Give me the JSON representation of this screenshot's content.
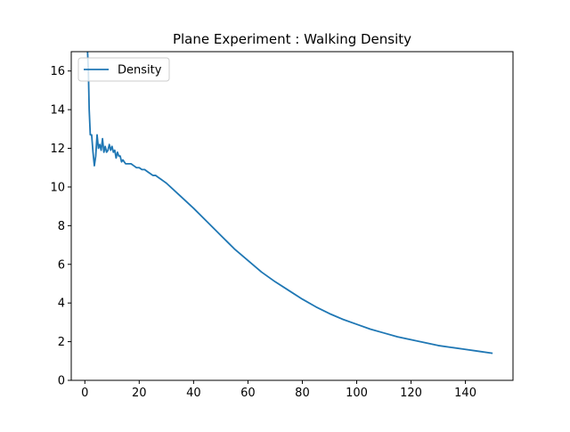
{
  "chart_data": {
    "type": "line",
    "title": "Plane Experiment : Walking Density",
    "xlabel": "",
    "ylabel": "",
    "xlim": [
      -5,
      157.5
    ],
    "ylim": [
      0,
      17
    ],
    "xticks": [
      0,
      20,
      40,
      60,
      80,
      100,
      120,
      140
    ],
    "yticks": [
      0,
      2,
      4,
      6,
      8,
      10,
      12,
      14,
      16
    ],
    "grid": false,
    "legend": "upper-left",
    "series": [
      {
        "name": "Density",
        "color": "#1f77b4",
        "x": [
          1.0,
          1.3,
          1.6,
          2.0,
          2.5,
          3.0,
          3.5,
          4.0,
          4.5,
          5.0,
          5.5,
          6.0,
          6.5,
          7.0,
          7.5,
          8.0,
          8.5,
          9.0,
          9.5,
          10.0,
          10.5,
          11.0,
          11.5,
          12.0,
          12.5,
          13.0,
          13.5,
          14.0,
          14.5,
          15.0,
          16.0,
          17.0,
          18.0,
          19.0,
          20.0,
          21.0,
          22.0,
          23.0,
          24.0,
          25.0,
          26.0,
          27.0,
          28.0,
          29.0,
          30.0,
          35.0,
          40.0,
          45.0,
          50.0,
          55.0,
          60.0,
          65.0,
          70.0,
          75.0,
          80.0,
          85.0,
          90.0,
          95.0,
          100.0,
          105.0,
          110.0,
          115.0,
          120.0,
          125.0,
          130.0,
          135.0,
          140.0,
          145.0,
          150.0
        ],
        "values": [
          17.0,
          16.0,
          14.0,
          12.7,
          12.7,
          11.8,
          11.1,
          11.6,
          12.7,
          12.0,
          12.2,
          11.9,
          12.5,
          11.8,
          12.1,
          11.8,
          11.9,
          12.2,
          11.9,
          12.1,
          11.8,
          11.9,
          11.5,
          11.8,
          11.6,
          11.6,
          11.3,
          11.4,
          11.3,
          11.2,
          11.2,
          11.2,
          11.1,
          11.0,
          11.0,
          10.9,
          10.9,
          10.8,
          10.7,
          10.6,
          10.6,
          10.5,
          10.4,
          10.3,
          10.2,
          9.55,
          8.9,
          8.2,
          7.5,
          6.8,
          6.2,
          5.6,
          5.1,
          4.65,
          4.2,
          3.8,
          3.45,
          3.15,
          2.9,
          2.65,
          2.45,
          2.25,
          2.1,
          1.95,
          1.8,
          1.7,
          1.6,
          1.5,
          1.4
        ]
      }
    ]
  }
}
